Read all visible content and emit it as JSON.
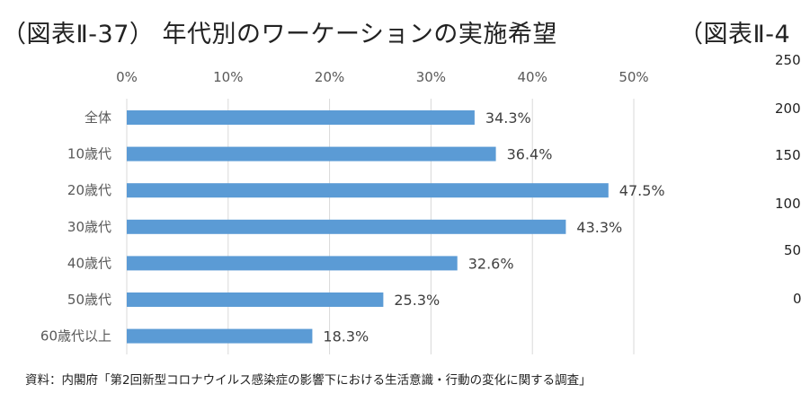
{
  "title": "（図表Ⅱ-37） 年代別のワーケーションの実施希望",
  "next_title": "（図表Ⅱ-4",
  "next_axis_ticks": [
    "250",
    "200",
    "150",
    "100",
    "50",
    "0"
  ],
  "source": "資料：内閣府「第2回新型コロナウイルス感染症の影響下における生活意識・行動の変化に関する調査」",
  "colors": {
    "bar": "#5B9BD5",
    "grid": "#D9D9D9"
  },
  "chart_data": {
    "type": "bar",
    "orientation": "horizontal",
    "title": "年代別のワーケーションの実施希望",
    "categories": [
      "全体",
      "10歳代",
      "20歳代",
      "30歳代",
      "40歳代",
      "50歳代",
      "60歳代以上"
    ],
    "values": [
      34.3,
      36.4,
      47.5,
      43.3,
      32.6,
      25.3,
      18.3
    ],
    "data_labels": [
      "34.3%",
      "36.4%",
      "47.5%",
      "43.3%",
      "32.6%",
      "25.3%",
      "18.3%"
    ],
    "xlim": [
      0,
      50
    ],
    "xticks": [
      "0%",
      "10%",
      "20%",
      "30%",
      "40%",
      "50%"
    ],
    "xaxis_position": "top",
    "grid": true,
    "legend": "none"
  }
}
